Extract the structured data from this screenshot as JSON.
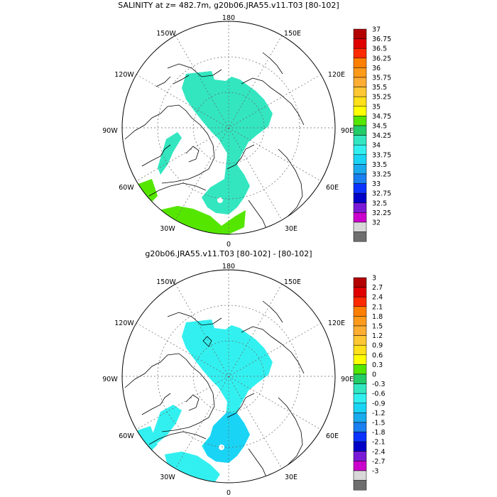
{
  "panels": [
    {
      "title": "SALINITY at z= 482.7m, g20b06.JRA55.v11.T03 [80-102]",
      "lon_labels": [
        "180",
        "150E",
        "120E",
        "90E",
        "60E",
        "30E",
        "0",
        "30W",
        "60W",
        "90W",
        "120W",
        "150W"
      ],
      "colorbar": {
        "labels": [
          "37",
          "36.75",
          "36.5",
          "36.25",
          "36",
          "35.75",
          "35.5",
          "35.25",
          "35",
          "34.75",
          "34.5",
          "34.25",
          "34",
          "33.75",
          "33.5",
          "33.25",
          "33",
          "32.75",
          "32.5",
          "32.25",
          "32"
        ],
        "colors": [
          "#b30000",
          "#e00000",
          "#ff2a00",
          "#ff7f00",
          "#ff9a1a",
          "#ffad33",
          "#ffc733",
          "#ffe01a",
          "#ffff00",
          "#55e600",
          "#22cc66",
          "#33e6c0",
          "#33f0f0",
          "#1ad4f5",
          "#1aaaee",
          "#1a7ff0",
          "#0a33ff",
          "#0000c8",
          "#7a1ad6",
          "#cc00cc",
          "#d8d8d8",
          "#6e6e6e"
        ]
      }
    },
    {
      "title": "g20b06.JRA55.v11.T03 [80-102] -  [80-102]",
      "lon_labels": [
        "180",
        "150E",
        "120E",
        "90E",
        "60E",
        "30E",
        "0",
        "30W",
        "60W",
        "90W",
        "120W",
        "150W"
      ],
      "colorbar": {
        "labels": [
          "3",
          "2.7",
          "2.4",
          "2.1",
          "1.8",
          "1.5",
          "1.2",
          "0.9",
          "0.6",
          "0.3",
          "0",
          "-0.3",
          "-0.6",
          "-0.9",
          "-1.2",
          "-1.5",
          "-1.8",
          "-2.1",
          "-2.4",
          "-2.7",
          "-3"
        ],
        "colors": [
          "#b30000",
          "#e00000",
          "#ff2a00",
          "#ff7f00",
          "#ff9a1a",
          "#ffad33",
          "#ffc733",
          "#ffe01a",
          "#ffff00",
          "#55e600",
          "#22cc66",
          "#33e6c0",
          "#33f0f0",
          "#1ad4f5",
          "#1aaaee",
          "#1a7ff0",
          "#0a33ff",
          "#0000c8",
          "#7a1ad6",
          "#cc00cc",
          "#d8d8d8",
          "#6e6e6e"
        ]
      }
    }
  ],
  "fills": {
    "teal": "#33e6c0",
    "cyan": "#33f0f0",
    "light_blue": "#1ad4f5",
    "green": "#55e600",
    "bright_green": "#22cc66"
  }
}
